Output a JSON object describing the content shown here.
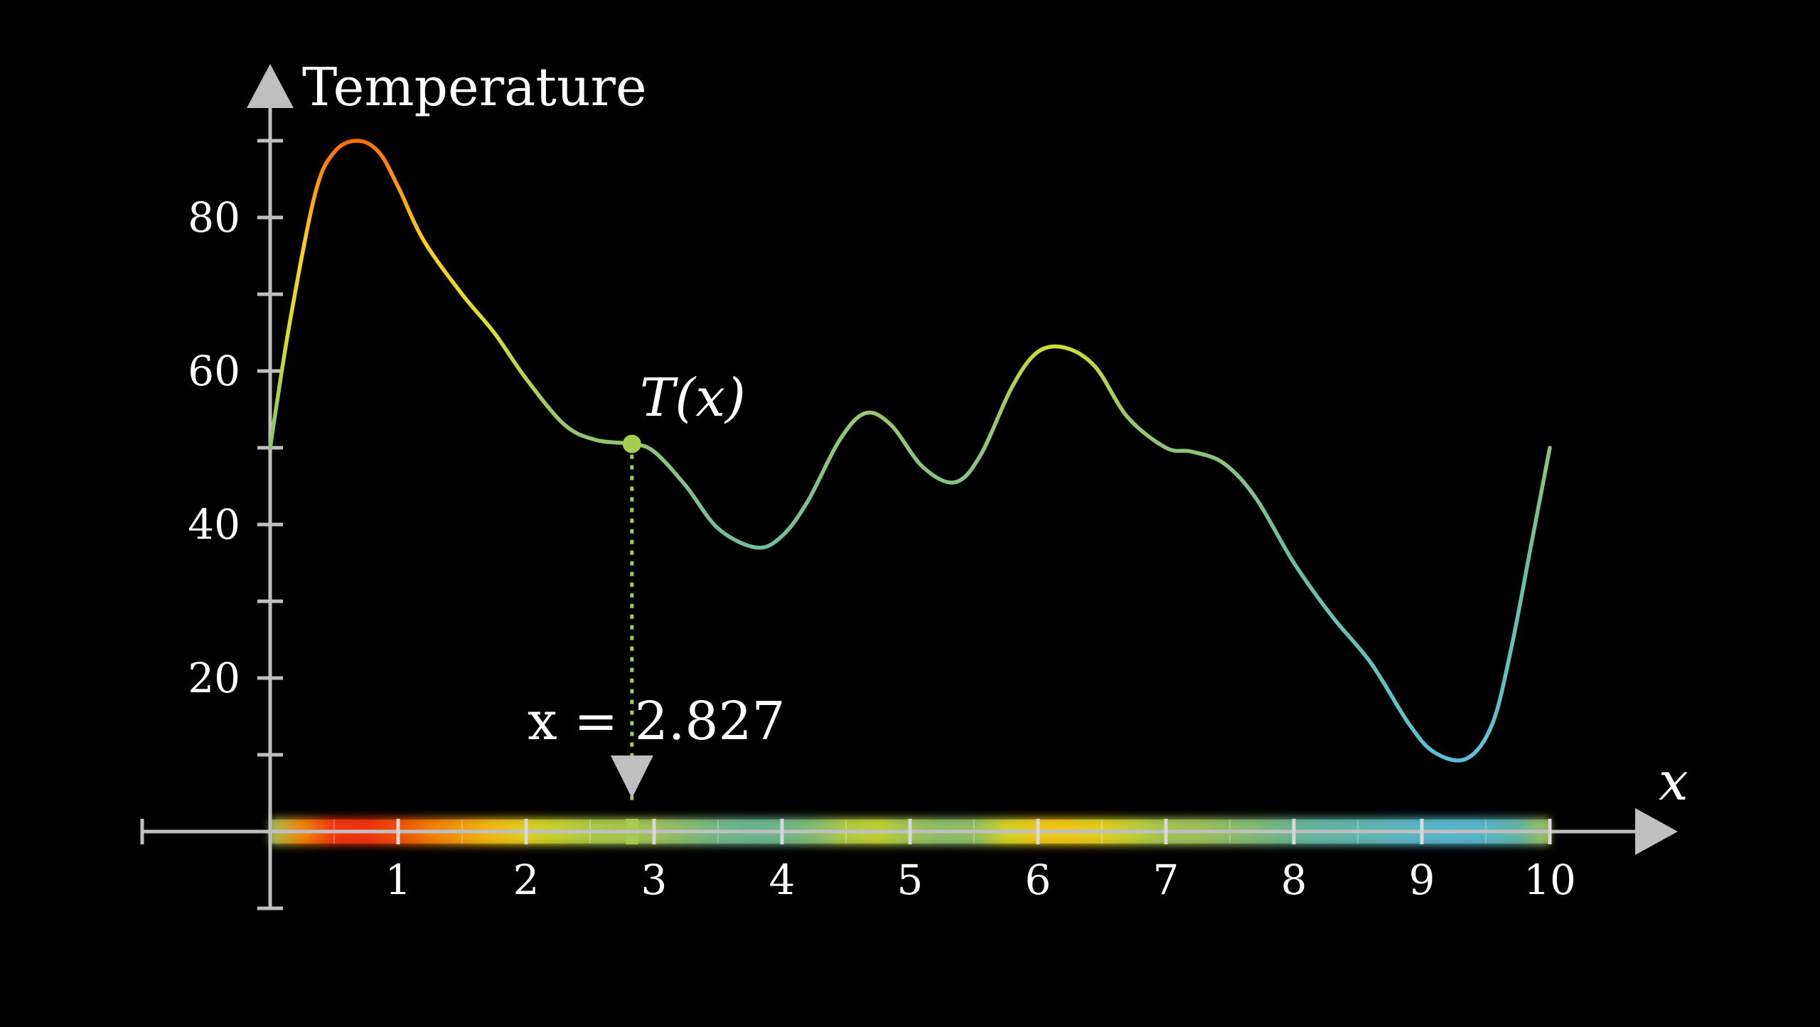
{
  "chart_data": {
    "type": "line",
    "ylabel": "Temperature",
    "xlabel": "x",
    "xlim": [
      0,
      10
    ],
    "ylim": [
      0,
      90
    ],
    "x_ticks": [
      1,
      2,
      3,
      4,
      5,
      6,
      7,
      8,
      9,
      10
    ],
    "y_ticks": [
      20,
      40,
      60,
      80
    ],
    "grid": false,
    "series": [
      {
        "name": "T(x)",
        "x": [
          0,
          0.15,
          0.35,
          0.5,
          0.68,
          0.85,
          1.0,
          1.2,
          1.5,
          1.75,
          2.0,
          2.3,
          2.55,
          2.827,
          3.0,
          3.25,
          3.5,
          3.8,
          4.0,
          4.2,
          4.45,
          4.65,
          4.85,
          5.1,
          5.35,
          5.55,
          5.8,
          6.0,
          6.22,
          6.45,
          6.7,
          7.0,
          7.2,
          7.45,
          7.7,
          8.0,
          8.3,
          8.6,
          8.9,
          9.1,
          9.35,
          9.55,
          9.7,
          9.85,
          10.0
        ],
        "y": [
          50,
          66,
          83,
          88.5,
          90,
          88.5,
          84,
          77,
          70,
          65,
          59,
          53,
          51,
          50.5,
          49.5,
          45,
          39.5,
          37,
          38.5,
          43,
          51,
          54.5,
          53,
          47.5,
          45.5,
          49,
          58,
          62.5,
          63,
          60.5,
          54,
          50,
          49.5,
          48,
          43.5,
          35,
          28,
          22,
          14,
          10.3,
          9.5,
          14,
          24,
          37,
          50
        ]
      }
    ],
    "colormap": [
      "#ff3311",
      "#ff6a00",
      "#ffd21a",
      "#d6e02a",
      "#9bc76a",
      "#6fbf9a",
      "#5cc0d8"
    ]
  },
  "labels": {
    "function": "T(x)",
    "marker": "x = 2.827"
  },
  "marker": {
    "x": 2.827,
    "y": 50.5,
    "color": "#a6cc52"
  }
}
